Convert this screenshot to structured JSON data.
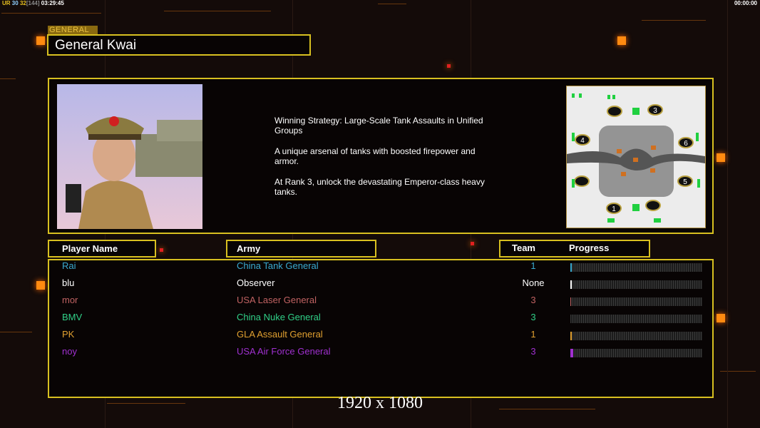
{
  "hud": {
    "a": "UR",
    "b": "30",
    "c": "32",
    "d": "[144]",
    "time": "03:29:45",
    "clock": "00:00:00"
  },
  "general": {
    "label": "GENERAL",
    "name": "General Kwai"
  },
  "description": [
    "Winning Strategy: Large-Scale Tank Assaults in Unified\n Groups",
    "A unique arsenal of tanks with boosted firepower and\n armor.",
    "At Rank 3, unlock the devastating Emperor-class heavy\n tanks."
  ],
  "headers": {
    "player": "Player Name",
    "army": "Army",
    "team": "Team",
    "progress": "Progress"
  },
  "players": [
    {
      "name": "Rai",
      "army": "China Tank General",
      "team": "1",
      "color": "#3aaad0",
      "progress": 1
    },
    {
      "name": "blu",
      "army": "Observer",
      "team": "None",
      "color": "#ffffff",
      "progress": 1
    },
    {
      "name": "mor",
      "army": "USA Laser General",
      "team": "3",
      "color": "#c06262",
      "progress": 0.5
    },
    {
      "name": "BMV",
      "army": "China Nuke General",
      "team": "3",
      "color": "#30d088",
      "progress": 0
    },
    {
      "name": "PK",
      "army": "GLA Assault General",
      "team": "1",
      "color": "#e0a030",
      "progress": 1
    },
    {
      "name": "noy",
      "army": "USA Air Force General",
      "team": "3",
      "color": "#a030d0",
      "progress": 2
    }
  ],
  "map": {
    "spawns": [
      "1",
      "3",
      "4",
      "5",
      "6"
    ]
  },
  "resolution": "1920 x 1080"
}
